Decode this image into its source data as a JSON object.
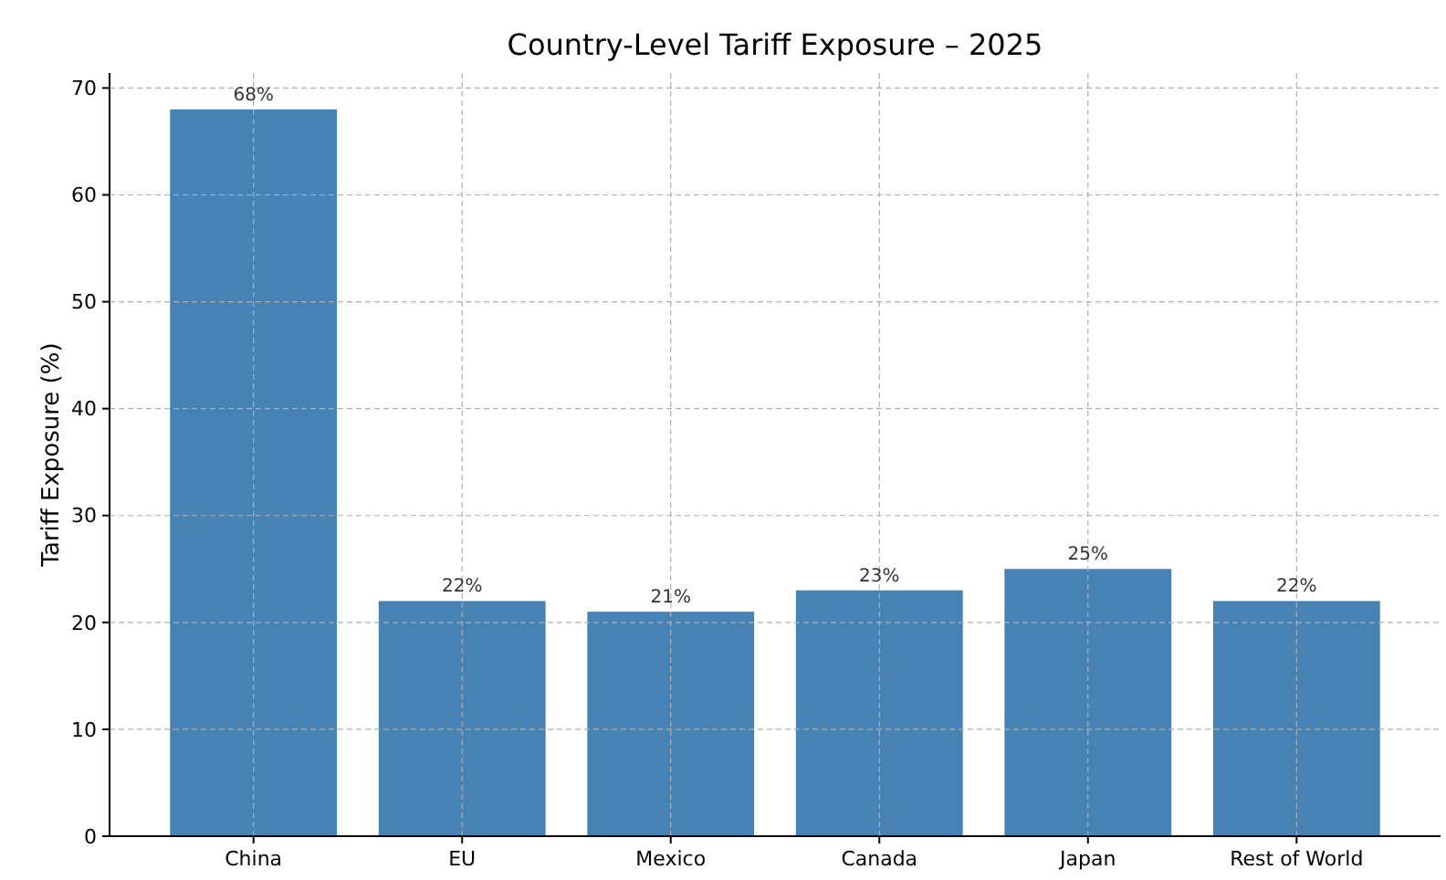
{
  "chart_data": {
    "type": "bar",
    "title": "Country-Level Tariff Exposure – 2025",
    "ylabel": "Tariff Exposure (%)",
    "categories": [
      "China",
      "EU",
      "Mexico",
      "Canada",
      "Japan",
      "Rest of World"
    ],
    "values": [
      68,
      22,
      21,
      23,
      25,
      22
    ],
    "value_labels": [
      "68%",
      "22%",
      "21%",
      "23%",
      "25%",
      "22%"
    ],
    "color": "#4682b4",
    "ylim": [
      0,
      71.4
    ],
    "yticks": [
      0,
      10,
      20,
      30,
      40,
      50,
      60,
      70
    ],
    "grid": true
  }
}
